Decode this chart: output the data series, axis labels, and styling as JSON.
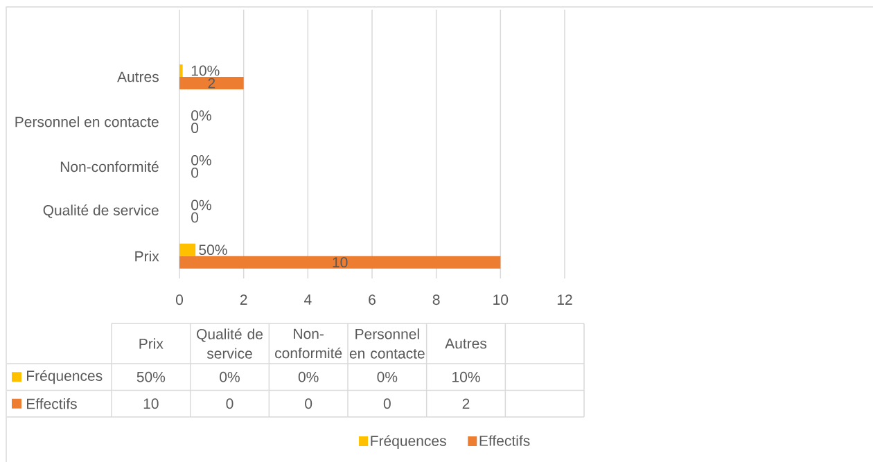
{
  "chart_data": {
    "type": "bar",
    "orientation": "horizontal",
    "categories": [
      null,
      "Autres",
      "Personnel en contacte",
      "Non-conformité",
      "Qualité de service",
      "Prix"
    ],
    "series": [
      {
        "name": "Fréquences",
        "color": "#ffc000",
        "values": [
          null,
          0.1,
          0,
          0,
          0,
          0.5
        ],
        "value_labels": [
          null,
          "10%",
          "0%",
          "0%",
          "0%",
          "50%"
        ]
      },
      {
        "name": "Effectifs",
        "color": "#ed7d31",
        "values": [
          null,
          2,
          0,
          0,
          0,
          10
        ],
        "value_labels": [
          null,
          "2",
          "0",
          "0",
          "0",
          "10"
        ]
      }
    ],
    "xlim": [
      0,
      12
    ],
    "xticks": [
      0,
      2,
      4,
      6,
      8,
      10,
      12
    ],
    "grid": "x",
    "legend": "bottom"
  }
}
